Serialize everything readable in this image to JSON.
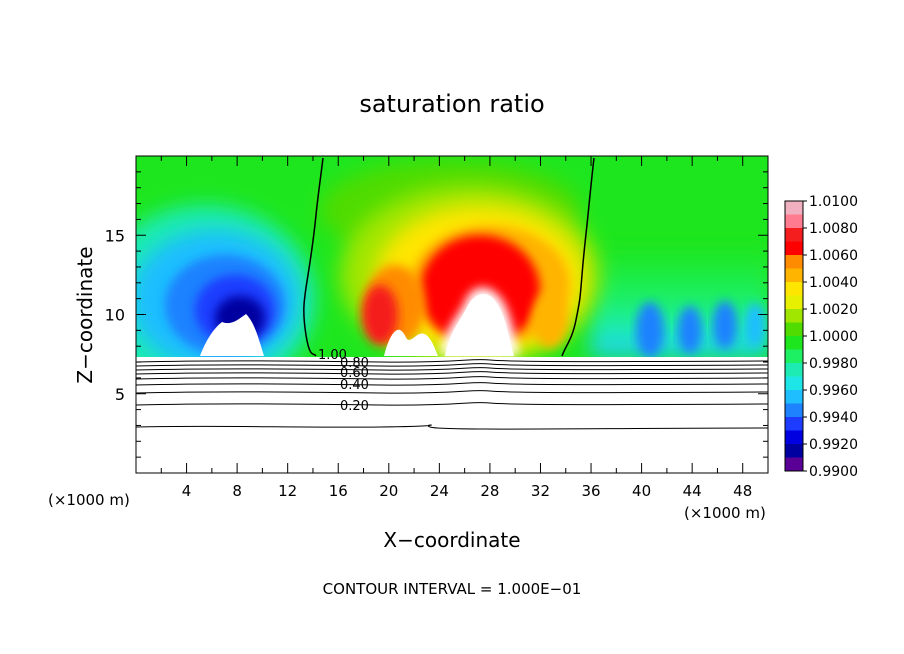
{
  "chart_data": {
    "type": "heatmap",
    "title": "saturation ratio",
    "xlabel": "X−coordinate",
    "ylabel": "Z−coordinate",
    "x_unit_left": "(×1000 m)",
    "x_unit_right": "(×1000 m)",
    "xlim": [
      0,
      50
    ],
    "ylim": [
      0,
      20
    ],
    "x_ticks": [
      4,
      8,
      12,
      16,
      20,
      24,
      28,
      32,
      36,
      40,
      44,
      48
    ],
    "y_ticks": [
      5,
      10,
      15
    ],
    "footer": "CONTOUR INTERVAL = 1.000E−01",
    "colorbar": {
      "labels": [
        "1.0100",
        "1.0080",
        "1.0060",
        "1.0040",
        "1.0020",
        "1.0000",
        "0.9980",
        "0.9960",
        "0.9940",
        "0.9920",
        "0.9900"
      ],
      "colors": [
        "#f0b0c0",
        "#ff7c90",
        "#f51e1e",
        "#ff0000",
        "#ff8c00",
        "#ffb400",
        "#ffe600",
        "#e6f000",
        "#a0e600",
        "#50dc00",
        "#1ee61e",
        "#1ef064",
        "#1eebb4",
        "#1ee6e6",
        "#1ebeff",
        "#1e82ff",
        "#1e3cff",
        "#0000e1",
        "#0000a0",
        "#5a0096"
      ]
    },
    "contours": [
      {
        "label": "1.00",
        "x": 14.0,
        "z": 7.4
      },
      {
        "label": "0.80",
        "x": 16.8,
        "z": 6.9
      },
      {
        "label": "0.60",
        "x": 16.8,
        "z": 6.6
      },
      {
        "label": "0.40",
        "x": 17.0,
        "z": 5.6
      },
      {
        "label": "0.20",
        "x": 17.2,
        "z": 4.3
      }
    ]
  }
}
